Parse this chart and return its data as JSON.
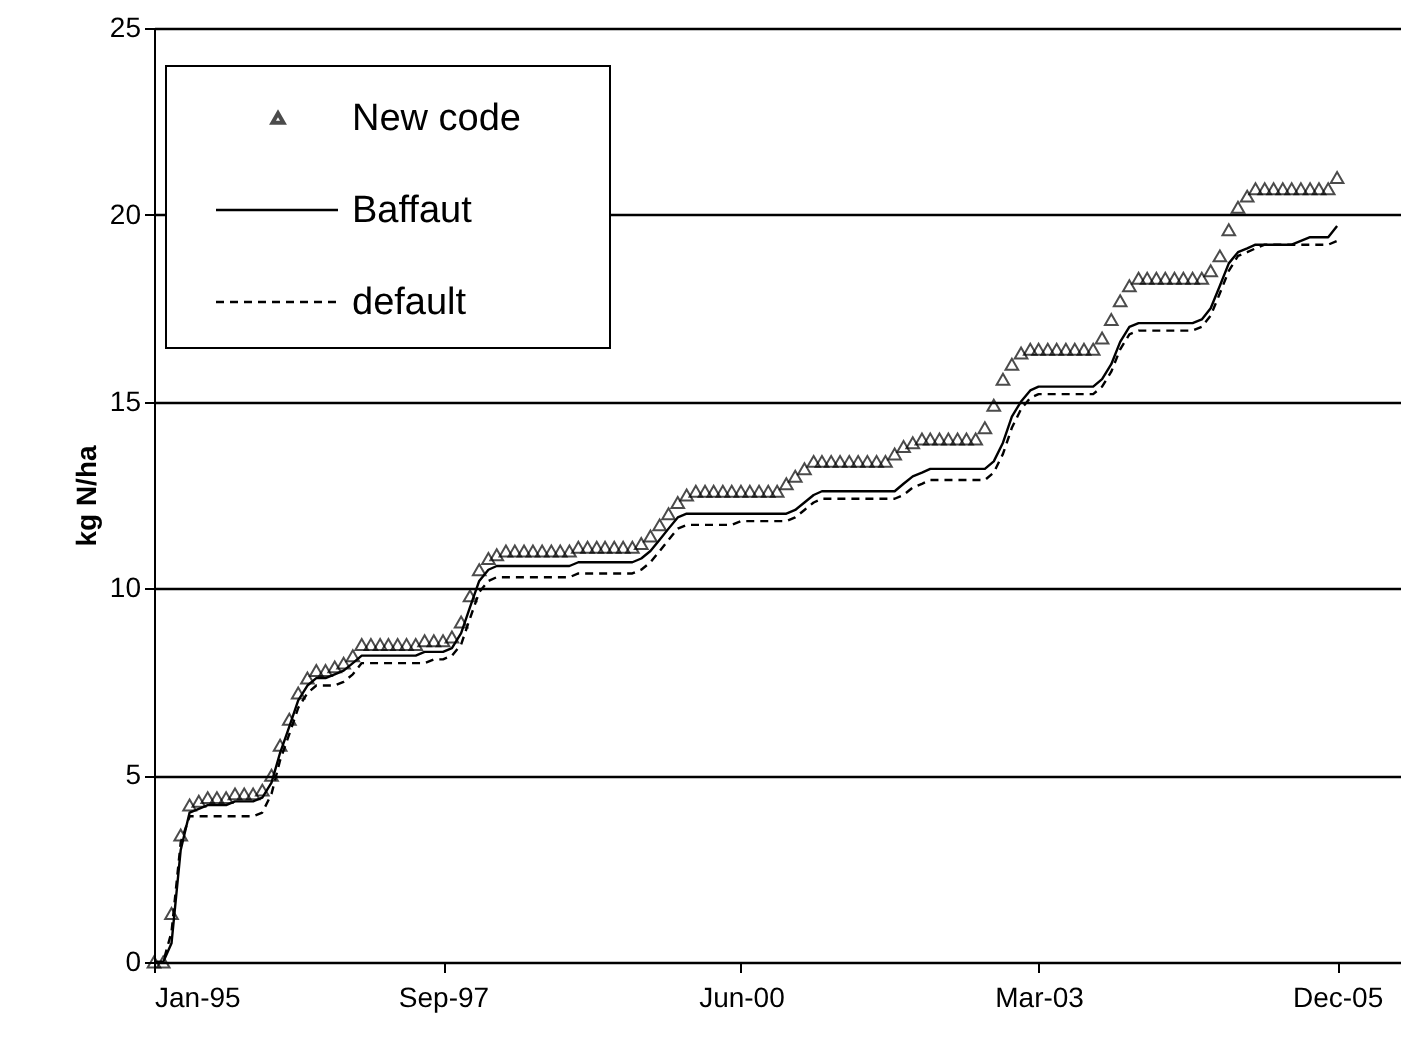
{
  "chart_data": {
    "type": "line",
    "ylabel": "kg N/ha",
    "x": [
      "1995-01",
      "1995-02",
      "1995-03",
      "1995-04",
      "1995-05",
      "1995-06",
      "1995-07",
      "1995-08",
      "1995-09",
      "1995-10",
      "1995-11",
      "1995-12",
      "1996-01",
      "1996-02",
      "1996-03",
      "1996-04",
      "1996-05",
      "1996-06",
      "1996-07",
      "1996-08",
      "1996-09",
      "1996-10",
      "1996-11",
      "1996-12",
      "1997-01",
      "1997-02",
      "1997-03",
      "1997-04",
      "1997-05",
      "1997-06",
      "1997-07",
      "1997-08",
      "1997-09",
      "1997-10",
      "1997-11",
      "1997-12",
      "1998-01",
      "1998-02",
      "1998-03",
      "1998-04",
      "1998-05",
      "1998-06",
      "1998-07",
      "1998-08",
      "1998-09",
      "1998-10",
      "1998-11",
      "1998-12",
      "1999-01",
      "1999-02",
      "1999-03",
      "1999-04",
      "1999-05",
      "1999-06",
      "1999-07",
      "1999-08",
      "1999-09",
      "1999-10",
      "1999-11",
      "1999-12",
      "2000-01",
      "2000-02",
      "2000-03",
      "2000-04",
      "2000-05",
      "2000-06",
      "2000-07",
      "2000-08",
      "2000-09",
      "2000-10",
      "2000-11",
      "2000-12",
      "2001-01",
      "2001-02",
      "2001-03",
      "2001-04",
      "2001-05",
      "2001-06",
      "2001-07",
      "2001-08",
      "2001-09",
      "2001-10",
      "2001-11",
      "2001-12",
      "2002-01",
      "2002-02",
      "2002-03",
      "2002-04",
      "2002-05",
      "2002-06",
      "2002-07",
      "2002-08",
      "2002-09",
      "2002-10",
      "2002-11",
      "2002-12",
      "2003-01",
      "2003-02",
      "2003-03",
      "2003-04",
      "2003-05",
      "2003-06",
      "2003-07",
      "2003-08",
      "2003-09",
      "2003-10",
      "2003-11",
      "2003-12",
      "2004-01",
      "2004-02",
      "2004-03",
      "2004-04",
      "2004-05",
      "2004-06",
      "2004-07",
      "2004-08",
      "2004-09",
      "2004-10",
      "2004-11",
      "2004-12",
      "2005-01",
      "2005-02",
      "2005-03",
      "2005-04",
      "2005-05",
      "2005-06",
      "2005-07",
      "2005-08",
      "2005-09",
      "2005-10",
      "2005-11",
      "2005-12"
    ],
    "series": [
      {
        "name": "New code",
        "type": "scatter",
        "marker": "triangle",
        "color": "#000000",
        "values": [
          0,
          0,
          1.3,
          3.4,
          4.2,
          4.3,
          4.4,
          4.4,
          4.4,
          4.5,
          4.5,
          4.5,
          4.6,
          5.0,
          5.8,
          6.5,
          7.2,
          7.6,
          7.8,
          7.8,
          7.9,
          8.0,
          8.2,
          8.5,
          8.5,
          8.5,
          8.5,
          8.5,
          8.5,
          8.5,
          8.6,
          8.6,
          8.6,
          8.7,
          9.1,
          9.8,
          10.5,
          10.8,
          10.9,
          11.0,
          11.0,
          11.0,
          11.0,
          11.0,
          11.0,
          11.0,
          11.0,
          11.1,
          11.1,
          11.1,
          11.1,
          11.1,
          11.1,
          11.1,
          11.2,
          11.4,
          11.7,
          12.0,
          12.3,
          12.5,
          12.6,
          12.6,
          12.6,
          12.6,
          12.6,
          12.6,
          12.6,
          12.6,
          12.6,
          12.6,
          12.8,
          13.0,
          13.2,
          13.4,
          13.4,
          13.4,
          13.4,
          13.4,
          13.4,
          13.4,
          13.4,
          13.4,
          13.6,
          13.8,
          13.9,
          14.0,
          14.0,
          14.0,
          14.0,
          14.0,
          14.0,
          14.0,
          14.3,
          14.9,
          15.6,
          16.0,
          16.3,
          16.4,
          16.4,
          16.4,
          16.4,
          16.4,
          16.4,
          16.4,
          16.4,
          16.7,
          17.2,
          17.7,
          18.1,
          18.3,
          18.3,
          18.3,
          18.3,
          18.3,
          18.3,
          18.3,
          18.3,
          18.5,
          18.9,
          19.6,
          20.2,
          20.5,
          20.7,
          20.7,
          20.7,
          20.7,
          20.7,
          20.7,
          20.7,
          20.7,
          20.7,
          21.0
        ]
      },
      {
        "name": "Baffaut",
        "type": "line",
        "line_style": "solid",
        "color": "#000000",
        "values": [
          0,
          0,
          0.5,
          3.0,
          4.0,
          4.1,
          4.2,
          4.2,
          4.2,
          4.3,
          4.3,
          4.3,
          4.4,
          4.8,
          5.6,
          6.3,
          7.0,
          7.4,
          7.6,
          7.6,
          7.7,
          7.8,
          8.0,
          8.2,
          8.2,
          8.2,
          8.2,
          8.2,
          8.2,
          8.2,
          8.3,
          8.3,
          8.3,
          8.4,
          8.8,
          9.5,
          10.2,
          10.5,
          10.6,
          10.6,
          10.6,
          10.6,
          10.6,
          10.6,
          10.6,
          10.6,
          10.6,
          10.7,
          10.7,
          10.7,
          10.7,
          10.7,
          10.7,
          10.7,
          10.8,
          11.0,
          11.3,
          11.6,
          11.9,
          12.0,
          12.0,
          12.0,
          12.0,
          12.0,
          12.0,
          12.0,
          12.0,
          12.0,
          12.0,
          12.0,
          12.0,
          12.1,
          12.3,
          12.5,
          12.6,
          12.6,
          12.6,
          12.6,
          12.6,
          12.6,
          12.6,
          12.6,
          12.6,
          12.8,
          13.0,
          13.1,
          13.2,
          13.2,
          13.2,
          13.2,
          13.2,
          13.2,
          13.2,
          13.4,
          13.9,
          14.6,
          15.0,
          15.3,
          15.4,
          15.4,
          15.4,
          15.4,
          15.4,
          15.4,
          15.4,
          15.6,
          16.0,
          16.6,
          17.0,
          17.1,
          17.1,
          17.1,
          17.1,
          17.1,
          17.1,
          17.1,
          17.2,
          17.5,
          18.1,
          18.7,
          19.0,
          19.1,
          19.2,
          19.2,
          19.2,
          19.2,
          19.2,
          19.3,
          19.4,
          19.4,
          19.4,
          19.7
        ]
      },
      {
        "name": "default",
        "type": "line",
        "line_style": "dashed",
        "color": "#000000",
        "values": [
          0,
          0,
          0.8,
          3.2,
          3.9,
          3.9,
          3.9,
          3.9,
          3.9,
          3.9,
          3.9,
          3.9,
          4.0,
          4.5,
          5.4,
          6.1,
          6.8,
          7.2,
          7.4,
          7.4,
          7.4,
          7.5,
          7.7,
          8.0,
          8.0,
          8.0,
          8.0,
          8.0,
          8.0,
          8.0,
          8.0,
          8.1,
          8.1,
          8.2,
          8.5,
          9.2,
          9.9,
          10.2,
          10.3,
          10.3,
          10.3,
          10.3,
          10.3,
          10.3,
          10.3,
          10.3,
          10.3,
          10.4,
          10.4,
          10.4,
          10.4,
          10.4,
          10.4,
          10.4,
          10.5,
          10.7,
          11.0,
          11.3,
          11.6,
          11.7,
          11.7,
          11.7,
          11.7,
          11.7,
          11.7,
          11.8,
          11.8,
          11.8,
          11.8,
          11.8,
          11.8,
          11.9,
          12.1,
          12.3,
          12.4,
          12.4,
          12.4,
          12.4,
          12.4,
          12.4,
          12.4,
          12.4,
          12.4,
          12.5,
          12.7,
          12.8,
          12.9,
          12.9,
          12.9,
          12.9,
          12.9,
          12.9,
          12.9,
          13.1,
          13.6,
          14.3,
          14.8,
          15.1,
          15.2,
          15.2,
          15.2,
          15.2,
          15.2,
          15.2,
          15.2,
          15.4,
          15.8,
          16.4,
          16.8,
          16.9,
          16.9,
          16.9,
          16.9,
          16.9,
          16.9,
          16.9,
          17.0,
          17.3,
          17.9,
          18.5,
          18.9,
          19.0,
          19.1,
          19.2,
          19.2,
          19.2,
          19.2,
          19.2,
          19.2,
          19.2,
          19.2,
          19.3
        ]
      }
    ],
    "xlim": [
      "1995-01",
      "2006-07"
    ],
    "xticks": [
      {
        "value": "1995-01",
        "label": "Jan-95"
      },
      {
        "value": "1997-09",
        "label": "Sep-97"
      },
      {
        "value": "2000-06",
        "label": "Jun-00"
      },
      {
        "value": "2003-03",
        "label": "Mar-03"
      },
      {
        "value": "2005-12",
        "label": "Dec-05"
      }
    ],
    "ylim": [
      0,
      25
    ],
    "yticks": [
      0,
      5,
      10,
      15,
      20,
      25
    ],
    "grid": "y",
    "legend": "top left"
  }
}
